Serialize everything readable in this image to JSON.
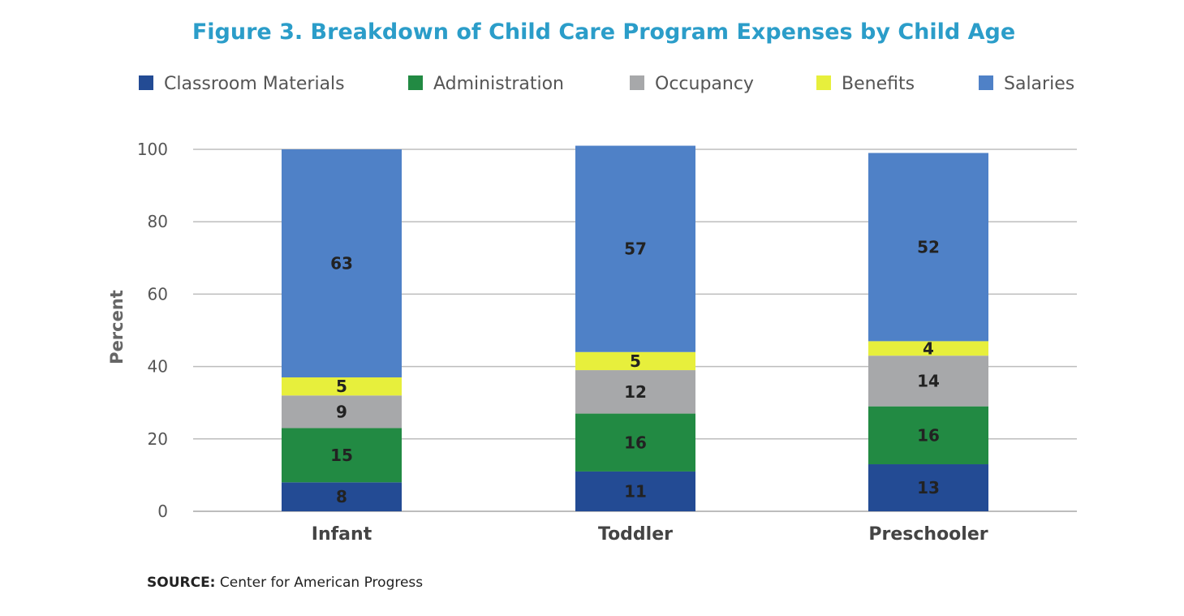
{
  "colors": {
    "title": "#2b9dc9",
    "grid": "#bdbdbd",
    "Classroom Materials": "#234b94",
    "Administration": "#228a43",
    "Occupancy": "#a7a8aa",
    "Benefits": "#e7ef3c",
    "Salaries": "#4f81c7"
  },
  "source": {
    "label": "SOURCE:",
    "text": "Center for American Progress"
  },
  "chart_data": {
    "type": "bar",
    "stacked": true,
    "title": "Figure 3. Breakdown of Child Care Program Expenses by Child Age",
    "ylabel": "Percent",
    "xlabel": "",
    "ylim": [
      0,
      100
    ],
    "yticks": [
      0,
      20,
      40,
      60,
      80,
      100
    ],
    "grid": true,
    "legend_position": "top",
    "categories": [
      "Infant",
      "Toddler",
      "Preschooler"
    ],
    "series": [
      {
        "name": "Classroom Materials",
        "values": [
          8,
          11,
          13
        ]
      },
      {
        "name": "Administration",
        "values": [
          15,
          16,
          16
        ]
      },
      {
        "name": "Occupancy",
        "values": [
          9,
          12,
          14
        ]
      },
      {
        "name": "Benefits",
        "values": [
          5,
          5,
          4
        ]
      },
      {
        "name": "Salaries",
        "values": [
          63,
          57,
          52
        ]
      }
    ]
  }
}
